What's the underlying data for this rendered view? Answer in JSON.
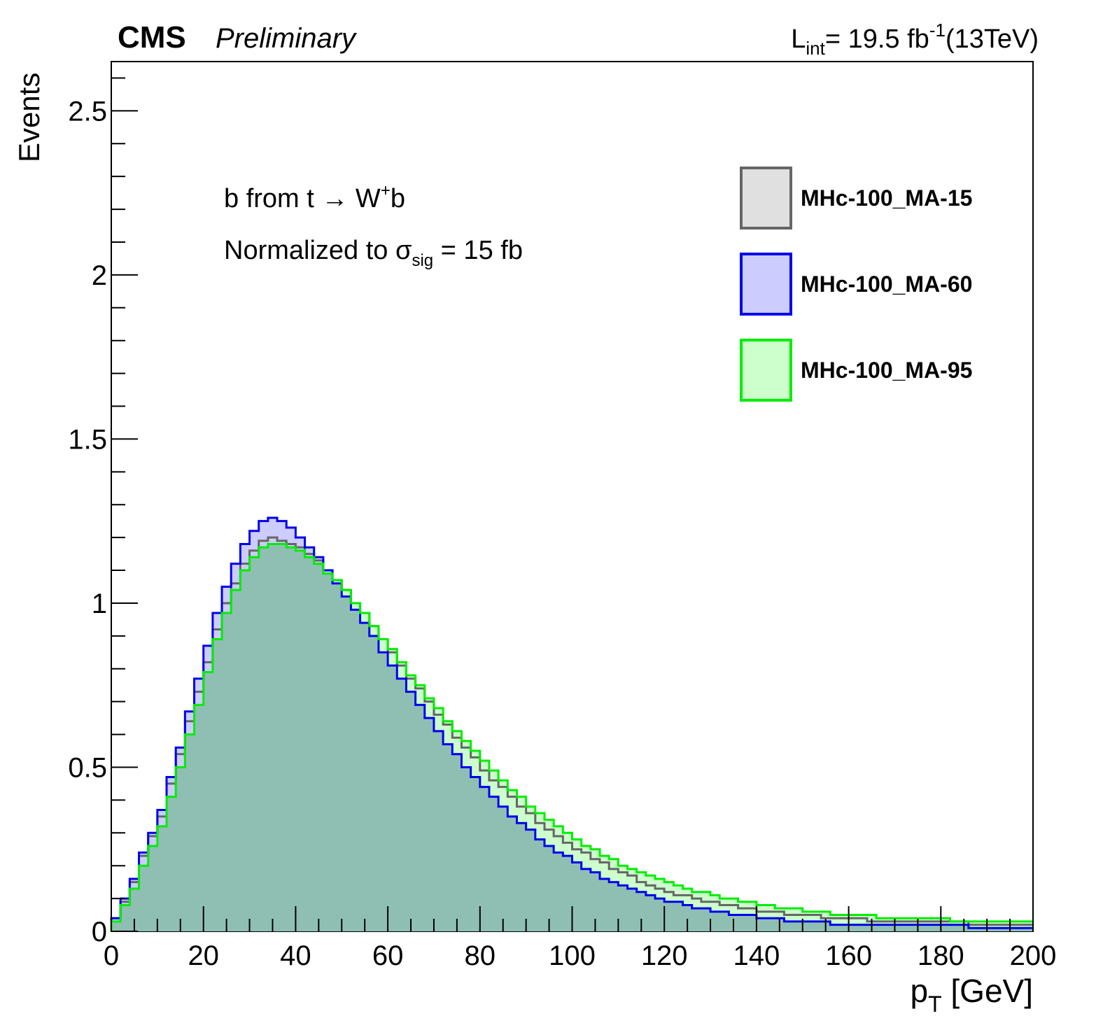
{
  "header": {
    "experiment": "CMS",
    "status": "Preliminary",
    "lumi_prefix": "L",
    "lumi_sub": "int",
    "lumi_value": "= 19.5 fb",
    "lumi_sup": "-1",
    "energy": "(13TeV)"
  },
  "annotations": {
    "line1_pre": "b from t ",
    "line1_arrow": "→",
    "line1_mid": " W",
    "line1_sup": "+",
    "line1_post": "b",
    "line2_pre": "Normalized to ",
    "line2_sigma": "σ",
    "line2_sub": "sig",
    "line2_post": " = 15 fb"
  },
  "chart_data": {
    "type": "histogram",
    "xlabel": "p",
    "xlabel_sub": "T",
    "xlabel_unit": " [GeV]",
    "ylabel": "Events",
    "xlim": [
      0,
      200
    ],
    "ylim": [
      0,
      2.65
    ],
    "x_ticks": [
      0,
      20,
      40,
      60,
      80,
      100,
      120,
      140,
      160,
      180,
      200
    ],
    "y_ticks": [
      0,
      0.5,
      1,
      1.5,
      2,
      2.5
    ],
    "y_tick_labels": [
      "0",
      "0.5",
      "1",
      "1.5",
      "2",
      "2.5"
    ],
    "bin_width": 2,
    "bin_edges_start": 0,
    "legend_position": "top-right",
    "series": [
      {
        "name": "MHc-100_MA-15",
        "line_color": "#666666",
        "fill_color": "#e0e0e0",
        "values": [
          0.04,
          0.09,
          0.15,
          0.23,
          0.29,
          0.35,
          0.45,
          0.54,
          0.64,
          0.73,
          0.82,
          0.92,
          1.0,
          1.06,
          1.12,
          1.16,
          1.19,
          1.2,
          1.19,
          1.18,
          1.17,
          1.15,
          1.13,
          1.1,
          1.07,
          1.04,
          1.0,
          0.97,
          0.93,
          0.89,
          0.85,
          0.81,
          0.77,
          0.74,
          0.7,
          0.66,
          0.63,
          0.59,
          0.56,
          0.53,
          0.49,
          0.46,
          0.44,
          0.41,
          0.38,
          0.36,
          0.33,
          0.31,
          0.29,
          0.27,
          0.25,
          0.24,
          0.22,
          0.21,
          0.19,
          0.18,
          0.17,
          0.15,
          0.14,
          0.13,
          0.12,
          0.11,
          0.11,
          0.1,
          0.09,
          0.09,
          0.08,
          0.08,
          0.07,
          0.07,
          0.06,
          0.06,
          0.06,
          0.05,
          0.05,
          0.05,
          0.05,
          0.04,
          0.04,
          0.04,
          0.04,
          0.04,
          0.03,
          0.03,
          0.03,
          0.03,
          0.03,
          0.03,
          0.03,
          0.03,
          0.03,
          0.03,
          0.03,
          0.02,
          0.02,
          0.02,
          0.02,
          0.02,
          0.02,
          0.02
        ]
      },
      {
        "name": "MHc-100_MA-60",
        "line_color": "#0000ee",
        "fill_color": "#ccccff",
        "values": [
          0.04,
          0.1,
          0.16,
          0.24,
          0.3,
          0.37,
          0.47,
          0.56,
          0.67,
          0.77,
          0.87,
          0.97,
          1.05,
          1.12,
          1.18,
          1.22,
          1.25,
          1.26,
          1.25,
          1.23,
          1.2,
          1.17,
          1.14,
          1.1,
          1.06,
          1.02,
          0.98,
          0.94,
          0.9,
          0.85,
          0.81,
          0.77,
          0.73,
          0.69,
          0.65,
          0.61,
          0.57,
          0.54,
          0.5,
          0.47,
          0.44,
          0.41,
          0.38,
          0.35,
          0.33,
          0.31,
          0.28,
          0.26,
          0.24,
          0.23,
          0.21,
          0.19,
          0.18,
          0.16,
          0.15,
          0.14,
          0.13,
          0.12,
          0.11,
          0.1,
          0.09,
          0.09,
          0.08,
          0.07,
          0.07,
          0.06,
          0.06,
          0.05,
          0.05,
          0.05,
          0.04,
          0.04,
          0.04,
          0.03,
          0.03,
          0.03,
          0.03,
          0.03,
          0.02,
          0.02,
          0.02,
          0.02,
          0.02,
          0.02,
          0.02,
          0.02,
          0.02,
          0.02,
          0.02,
          0.02,
          0.02,
          0.02,
          0.02,
          0.01,
          0.01,
          0.01,
          0.01,
          0.01,
          0.01,
          0.01
        ]
      },
      {
        "name": "MHc-100_MA-95",
        "line_color": "#00ee00",
        "fill_color": "#ccffcc",
        "values": [
          0.03,
          0.08,
          0.13,
          0.2,
          0.26,
          0.32,
          0.41,
          0.5,
          0.6,
          0.69,
          0.79,
          0.89,
          0.97,
          1.04,
          1.1,
          1.14,
          1.17,
          1.18,
          1.18,
          1.17,
          1.16,
          1.14,
          1.12,
          1.09,
          1.07,
          1.04,
          1.0,
          0.97,
          0.93,
          0.89,
          0.86,
          0.82,
          0.78,
          0.75,
          0.71,
          0.68,
          0.64,
          0.61,
          0.58,
          0.55,
          0.52,
          0.49,
          0.46,
          0.43,
          0.41,
          0.38,
          0.36,
          0.34,
          0.32,
          0.3,
          0.28,
          0.26,
          0.25,
          0.23,
          0.22,
          0.2,
          0.19,
          0.18,
          0.17,
          0.16,
          0.15,
          0.14,
          0.13,
          0.12,
          0.12,
          0.11,
          0.1,
          0.1,
          0.09,
          0.09,
          0.08,
          0.08,
          0.07,
          0.07,
          0.07,
          0.06,
          0.06,
          0.06,
          0.05,
          0.05,
          0.05,
          0.05,
          0.05,
          0.04,
          0.04,
          0.04,
          0.04,
          0.04,
          0.04,
          0.04,
          0.04,
          0.03,
          0.03,
          0.03,
          0.03,
          0.03,
          0.03,
          0.03,
          0.03,
          0.03
        ]
      }
    ],
    "overlap_fill_color": "#8fbfb3"
  },
  "legend": {
    "entries": [
      "MHc-100_MA-15",
      "MHc-100_MA-60",
      "MHc-100_MA-95"
    ]
  }
}
